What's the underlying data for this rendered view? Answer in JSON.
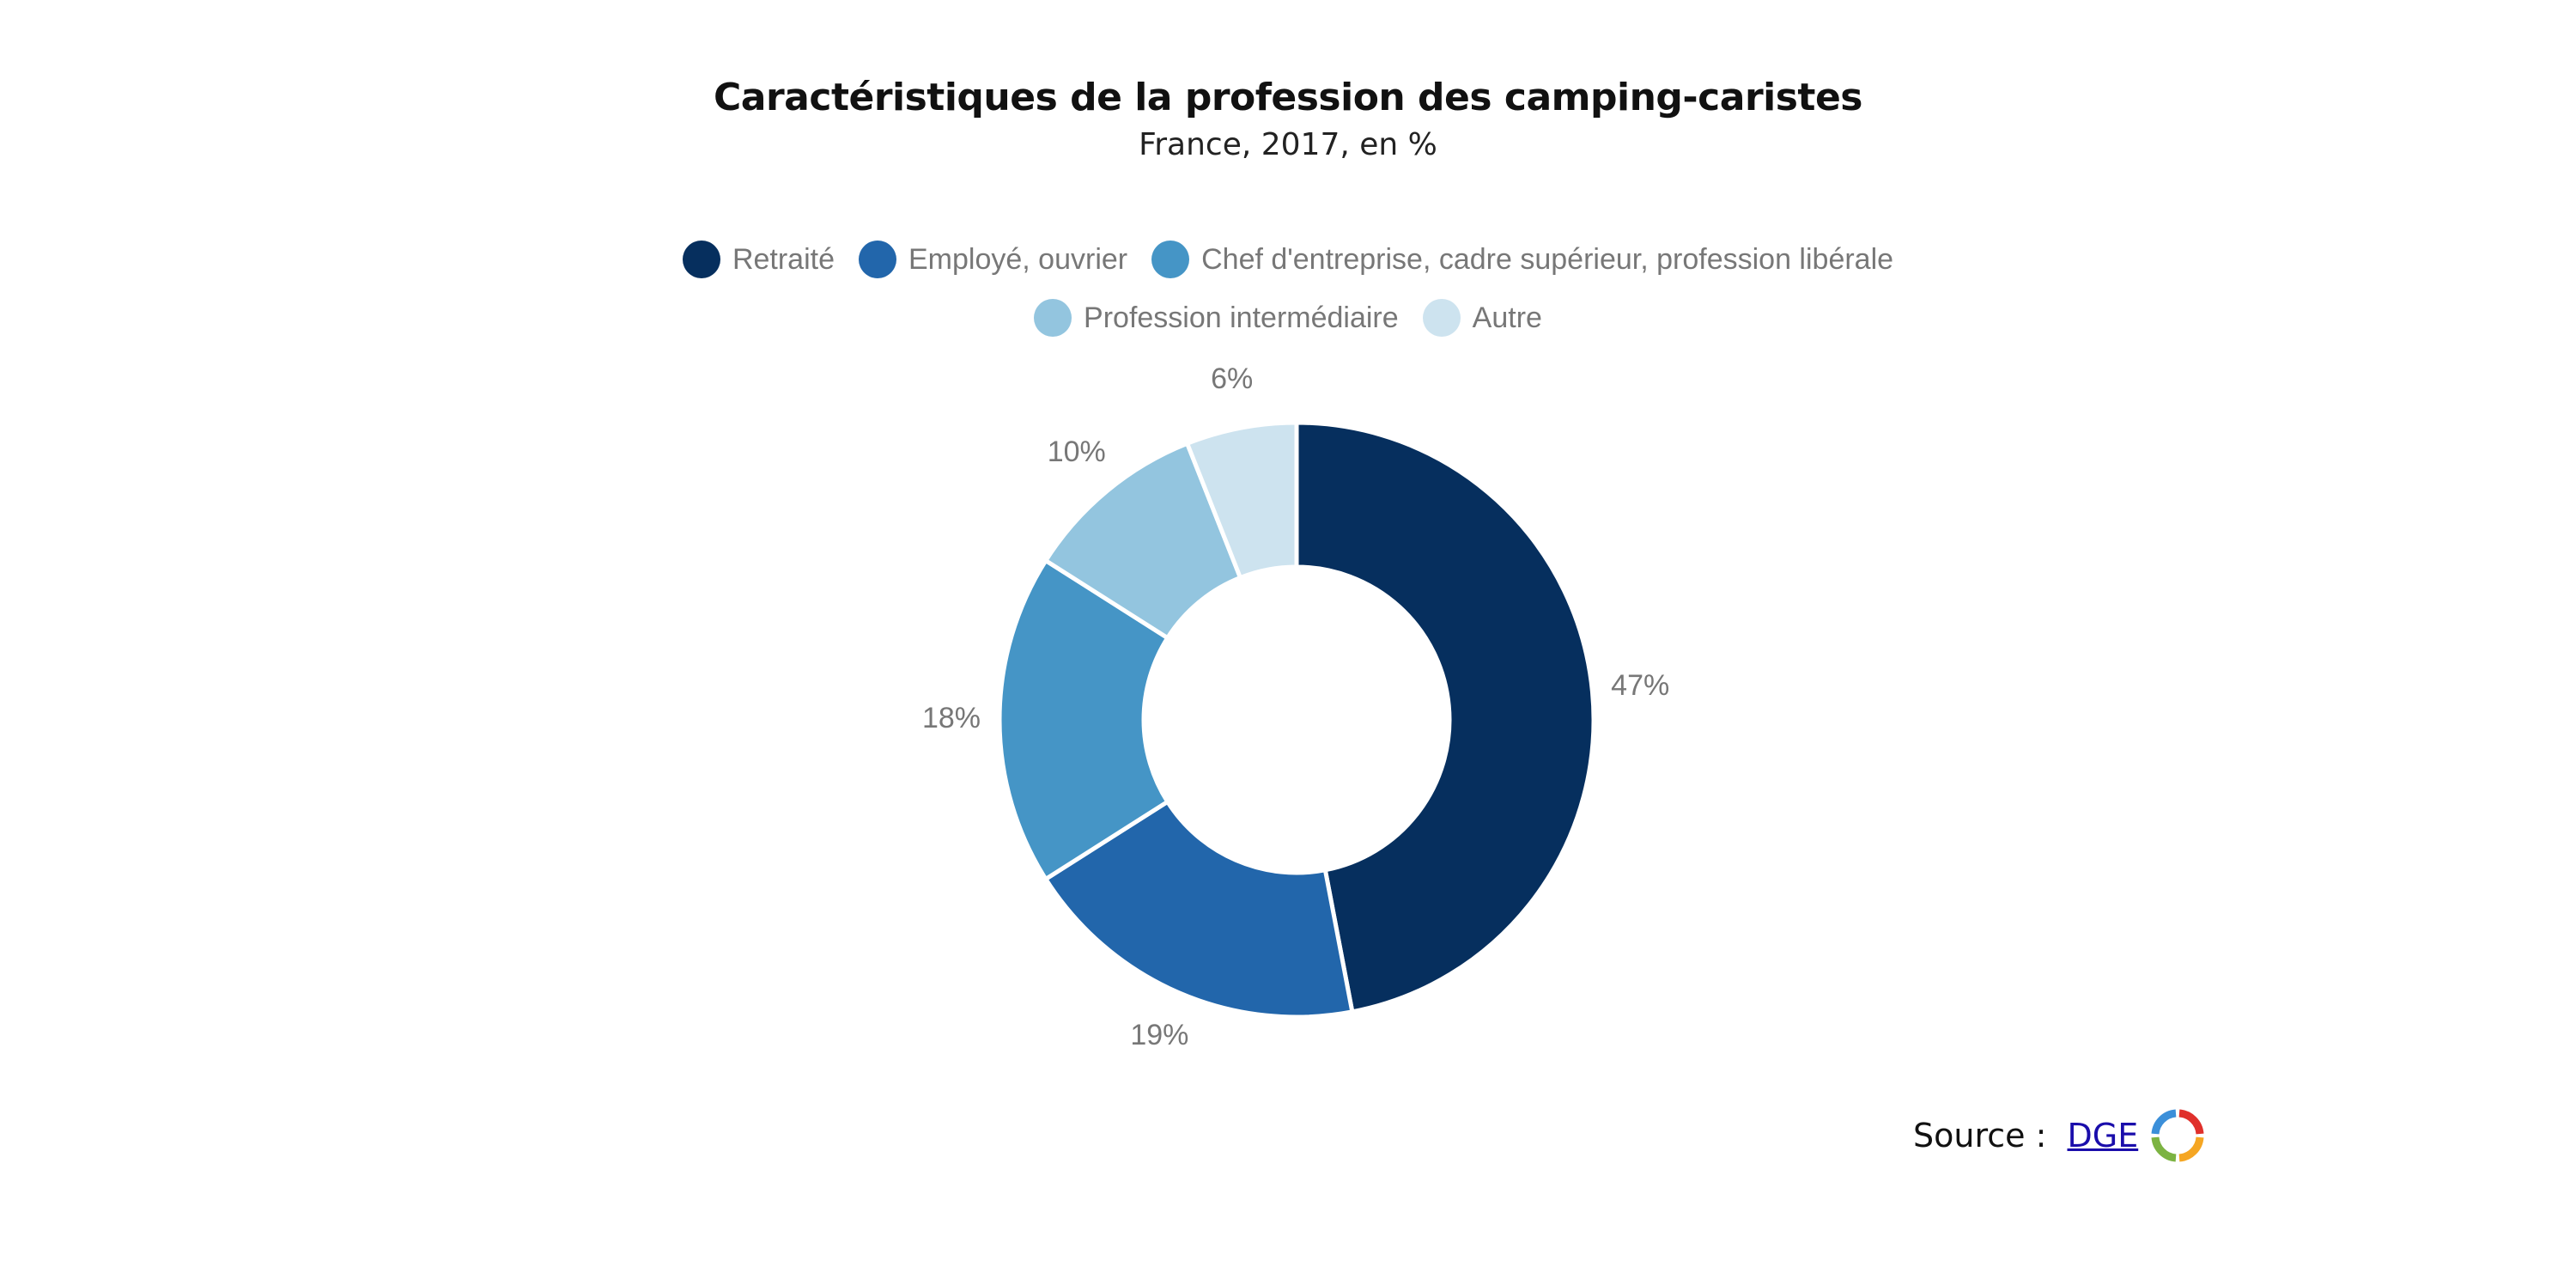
{
  "chart_data": {
    "type": "pie",
    "title": "Caractéristiques de la profession des camping-caristes",
    "subtitle": "France, 2017, en %",
    "categories": [
      "Retraité",
      "Employé, ouvrier",
      "Chef d'entreprise, cadre supérieur, profession libérale",
      "Profession intermédiaire",
      "Autre"
    ],
    "values": [
      47,
      19,
      18,
      10,
      6
    ],
    "value_labels": [
      "47%",
      "19%",
      "18%",
      "10%",
      "6%"
    ],
    "colors": [
      "#062f5e",
      "#2266ab",
      "#4595c6",
      "#93c5df",
      "#cde3ef"
    ],
    "donut": true,
    "legend_position": "top"
  },
  "source": {
    "prefix": "Source : ",
    "link_text": "DGE",
    "logo_colors": [
      "#e0302b",
      "#f5a623",
      "#7cb342",
      "#3b8fd9"
    ]
  }
}
